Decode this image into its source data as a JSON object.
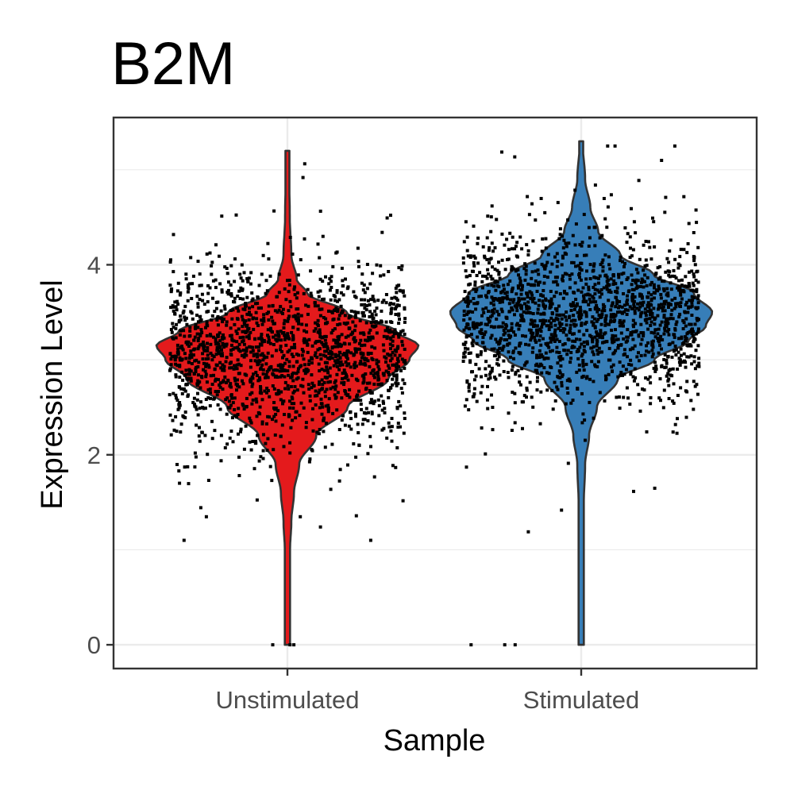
{
  "chart_data": {
    "type": "violin",
    "title": "B2M",
    "xlabel": "Sample",
    "ylabel": "Expression Level",
    "categories": [
      "Unstimulated",
      "Stimulated"
    ],
    "ylim": [
      -0.25,
      5.55
    ],
    "yticks": [
      0,
      2,
      4
    ],
    "grid": true,
    "legend": "none",
    "colors": {
      "Unstimulated": "#e41a1c",
      "Stimulated": "#377eb8",
      "outline": "#333333",
      "points": "#000000",
      "grid": "#ebebeb",
      "panel_border": "#333333"
    },
    "series": [
      {
        "category": "Unstimulated",
        "y_min": 0,
        "y_max": 5.2,
        "mode": 3.15,
        "median": 3.05,
        "density_profile": [
          [
            0.0,
            0.02
          ],
          [
            1.0,
            0.02
          ],
          [
            1.3,
            0.03
          ],
          [
            1.6,
            0.05
          ],
          [
            1.9,
            0.09
          ],
          [
            2.2,
            0.22
          ],
          [
            2.5,
            0.46
          ],
          [
            2.8,
            0.77
          ],
          [
            3.0,
            0.93
          ],
          [
            3.15,
            1.0
          ],
          [
            3.3,
            0.83
          ],
          [
            3.5,
            0.45
          ],
          [
            3.7,
            0.15
          ],
          [
            3.85,
            0.07
          ],
          [
            4.1,
            0.03
          ],
          [
            4.5,
            0.018
          ],
          [
            5.2,
            0.008
          ]
        ],
        "zero_points": 3
      },
      {
        "category": "Stimulated",
        "y_min": 0,
        "y_max": 5.3,
        "mode": 3.5,
        "median": 3.45,
        "density_profile": [
          [
            0.0,
            0.02
          ],
          [
            1.5,
            0.02
          ],
          [
            1.9,
            0.03
          ],
          [
            2.2,
            0.06
          ],
          [
            2.5,
            0.12
          ],
          [
            2.8,
            0.28
          ],
          [
            3.0,
            0.56
          ],
          [
            3.2,
            0.82
          ],
          [
            3.35,
            0.95
          ],
          [
            3.5,
            1.0
          ],
          [
            3.7,
            0.86
          ],
          [
            3.9,
            0.55
          ],
          [
            4.1,
            0.3
          ],
          [
            4.35,
            0.13
          ],
          [
            4.6,
            0.07
          ],
          [
            4.9,
            0.03
          ],
          [
            5.3,
            0.01
          ]
        ],
        "zero_points": 3
      }
    ]
  }
}
